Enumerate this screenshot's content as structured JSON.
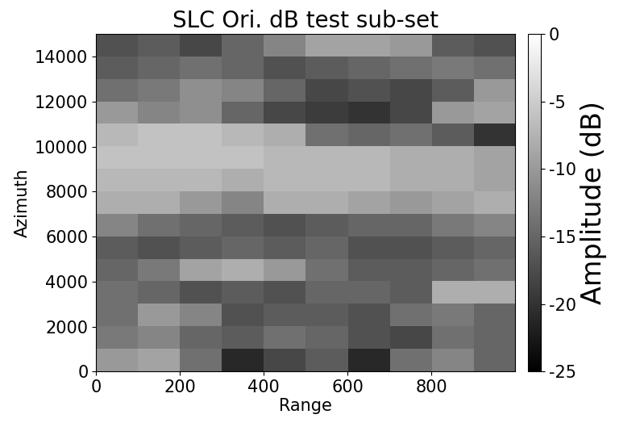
{
  "chart_data": {
    "type": "heatmap",
    "title": "SLC Ori. dB test sub-set",
    "x_label": "Range",
    "y_label": "Azimuth",
    "xlim": [
      0,
      1000
    ],
    "xticks": [
      0,
      200,
      400,
      600,
      800
    ],
    "ylim": [
      0,
      15000
    ],
    "yticks": [
      0,
      2000,
      4000,
      6000,
      8000,
      10000,
      12000,
      14000
    ],
    "color": "gray",
    "cells": [
      [
        -17,
        -16,
        -18,
        -15,
        -12,
        -9,
        -9,
        -10,
        -16,
        -17
      ],
      [
        -16,
        -15,
        -14,
        -15,
        -17,
        -16,
        -15,
        -14,
        -13,
        -14
      ],
      [
        -14,
        -13,
        -11,
        -12,
        -15,
        -18,
        -17,
        -18,
        -16,
        -10
      ],
      [
        -10,
        -12,
        -11,
        -15,
        -18,
        -19,
        -20,
        -18,
        -10,
        -9
      ],
      [
        -7,
        -6,
        -6,
        -7,
        -8,
        -14,
        -15,
        -14,
        -16,
        -20
      ],
      [
        -6,
        -6,
        -6,
        -6,
        -7,
        -7,
        -7,
        -8,
        -8,
        -9
      ],
      [
        -7,
        -7,
        -7,
        -8,
        -7,
        -7,
        -7,
        -8,
        -8,
        -9
      ],
      [
        -8,
        -8,
        -10,
        -12,
        -8,
        -8,
        -9,
        -10,
        -9,
        -8
      ],
      [
        -12,
        -14,
        -15,
        -16,
        -17,
        -16,
        -15,
        -15,
        -13,
        -12
      ],
      [
        -16,
        -17,
        -16,
        -15,
        -16,
        -15,
        -17,
        -17,
        -16,
        -15
      ],
      [
        -15,
        -13,
        -9,
        -8,
        -10,
        -14,
        -16,
        -16,
        -15,
        -14
      ],
      [
        -14,
        -15,
        -17,
        -16,
        -17,
        -15,
        -15,
        -16,
        -8,
        -8
      ],
      [
        -14,
        -10,
        -12,
        -17,
        -16,
        -16,
        -17,
        -14,
        -13,
        -15
      ],
      [
        -13,
        -12,
        -15,
        -16,
        -14,
        -15,
        -17,
        -18,
        -14,
        -15
      ],
      [
        -10,
        -9,
        -14,
        -21,
        -18,
        -16,
        -21,
        -14,
        -12,
        -15
      ]
    ],
    "colorbar": {
      "label": "Amplitude (dB)",
      "range": [
        -25,
        0
      ],
      "ticks": [
        -25,
        -20,
        -15,
        -10,
        -5,
        0
      ]
    }
  }
}
